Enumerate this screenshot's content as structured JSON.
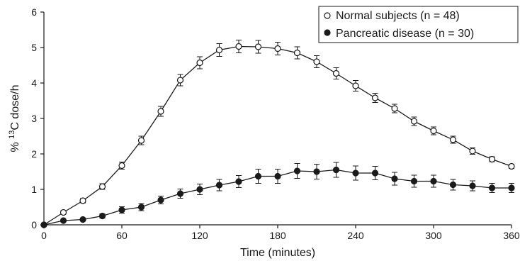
{
  "chart_data": {
    "type": "line",
    "title": "",
    "xlabel": "Time (minutes)",
    "ylabel_prefix": "% ",
    "ylabel_sup": "13",
    "ylabel_suffix": "C dose/h",
    "xlim": [
      0,
      360
    ],
    "ylim": [
      0,
      6
    ],
    "x_ticks": [
      0,
      60,
      120,
      180,
      240,
      300,
      360
    ],
    "y_ticks": [
      0,
      1,
      2,
      3,
      4,
      5,
      6
    ],
    "grid": false,
    "legend_position": "top-right",
    "x": [
      0,
      15,
      30,
      45,
      60,
      75,
      90,
      105,
      120,
      135,
      150,
      165,
      180,
      195,
      210,
      225,
      240,
      255,
      270,
      285,
      300,
      315,
      330,
      345,
      360
    ],
    "series": [
      {
        "name": "Normal subjects (n = 48)",
        "marker": "open-circle",
        "values": [
          0,
          0.35,
          0.68,
          1.08,
          1.67,
          2.38,
          3.2,
          4.08,
          4.57,
          4.93,
          5.03,
          5.02,
          4.97,
          4.85,
          4.6,
          4.27,
          3.92,
          3.58,
          3.28,
          2.92,
          2.65,
          2.4,
          2.08,
          1.85,
          1.65
        ],
        "errors": [
          0,
          0.05,
          0.06,
          0.08,
          0.1,
          0.12,
          0.14,
          0.16,
          0.17,
          0.18,
          0.18,
          0.18,
          0.18,
          0.17,
          0.17,
          0.16,
          0.15,
          0.13,
          0.12,
          0.12,
          0.11,
          0.1,
          0.09,
          0.07,
          0.06
        ]
      },
      {
        "name": "Pancreatic disease (n = 30)",
        "marker": "filled-circle",
        "values": [
          0,
          0.12,
          0.15,
          0.25,
          0.42,
          0.5,
          0.7,
          0.88,
          1.0,
          1.12,
          1.22,
          1.37,
          1.37,
          1.52,
          1.5,
          1.55,
          1.46,
          1.46,
          1.3,
          1.23,
          1.23,
          1.13,
          1.1,
          1.04,
          1.04
        ],
        "errors": [
          0,
          0.03,
          0.04,
          0.06,
          0.09,
          0.1,
          0.11,
          0.13,
          0.15,
          0.16,
          0.17,
          0.2,
          0.2,
          0.21,
          0.21,
          0.21,
          0.2,
          0.19,
          0.18,
          0.17,
          0.17,
          0.15,
          0.14,
          0.13,
          0.13
        ]
      }
    ]
  },
  "colors": {
    "line": "#1a1a1a",
    "open_marker_fill": "#ffffff",
    "filled_marker_fill": "#1a1a1a"
  }
}
